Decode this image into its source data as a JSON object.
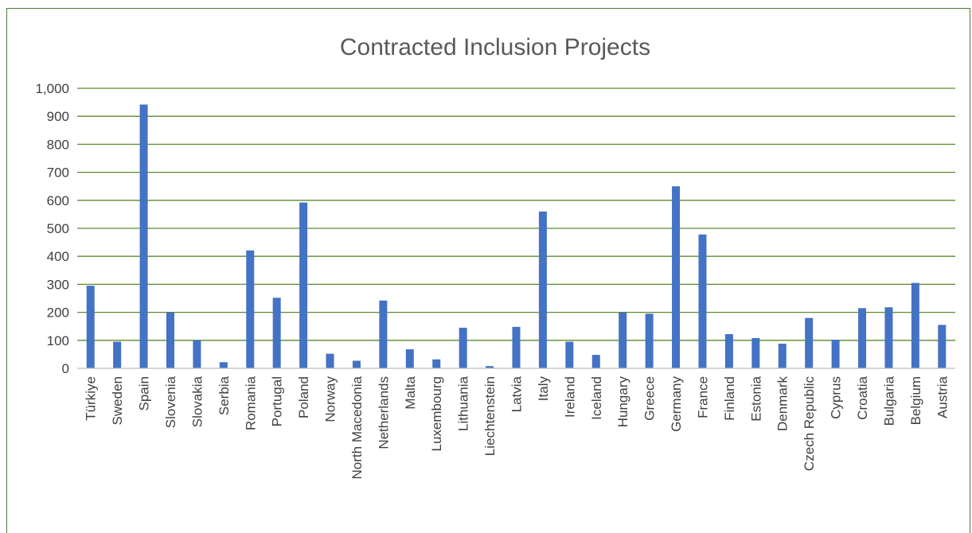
{
  "chart_data": {
    "type": "bar",
    "title": "Contracted Inclusion Projects",
    "xlabel": "",
    "ylabel": "",
    "ylim": [
      0,
      1000
    ],
    "ytick_values": [
      0,
      100,
      200,
      300,
      400,
      500,
      600,
      700,
      800,
      900,
      1000
    ],
    "ytick_labels": [
      "0",
      "100",
      "200",
      "300",
      "400",
      "500",
      "600",
      "700",
      "800",
      "900",
      "1,000"
    ],
    "grid": true,
    "legend": "none",
    "bar_color": "#4472c4",
    "grid_color": "#5b8a2e",
    "categories": [
      "Türkiye",
      "Sweden",
      "Spain",
      "Slovenia",
      "Slovakia",
      "Serbia",
      "Romania",
      "Portugal",
      "Poland",
      "Norway",
      "North Macedonia",
      "Netherlands",
      "Malta",
      "Luxembourg",
      "Lithuania",
      "Liechtenstein",
      "Latvia",
      "Italy",
      "Ireland",
      "Iceland",
      "Hungary",
      "Greece",
      "Germany",
      "France",
      "Finland",
      "Estonia",
      "Denmark",
      "Czech Republic",
      "Cyprus",
      "Croatia",
      "Bulgaria",
      "Belgium",
      "Austria"
    ],
    "values": [
      295,
      95,
      942,
      200,
      100,
      22,
      421,
      252,
      592,
      52,
      27,
      242,
      68,
      32,
      145,
      8,
      148,
      560,
      95,
      48,
      200,
      195,
      650,
      478,
      122,
      108,
      88,
      180,
      102,
      215,
      218,
      305,
      155
    ]
  }
}
